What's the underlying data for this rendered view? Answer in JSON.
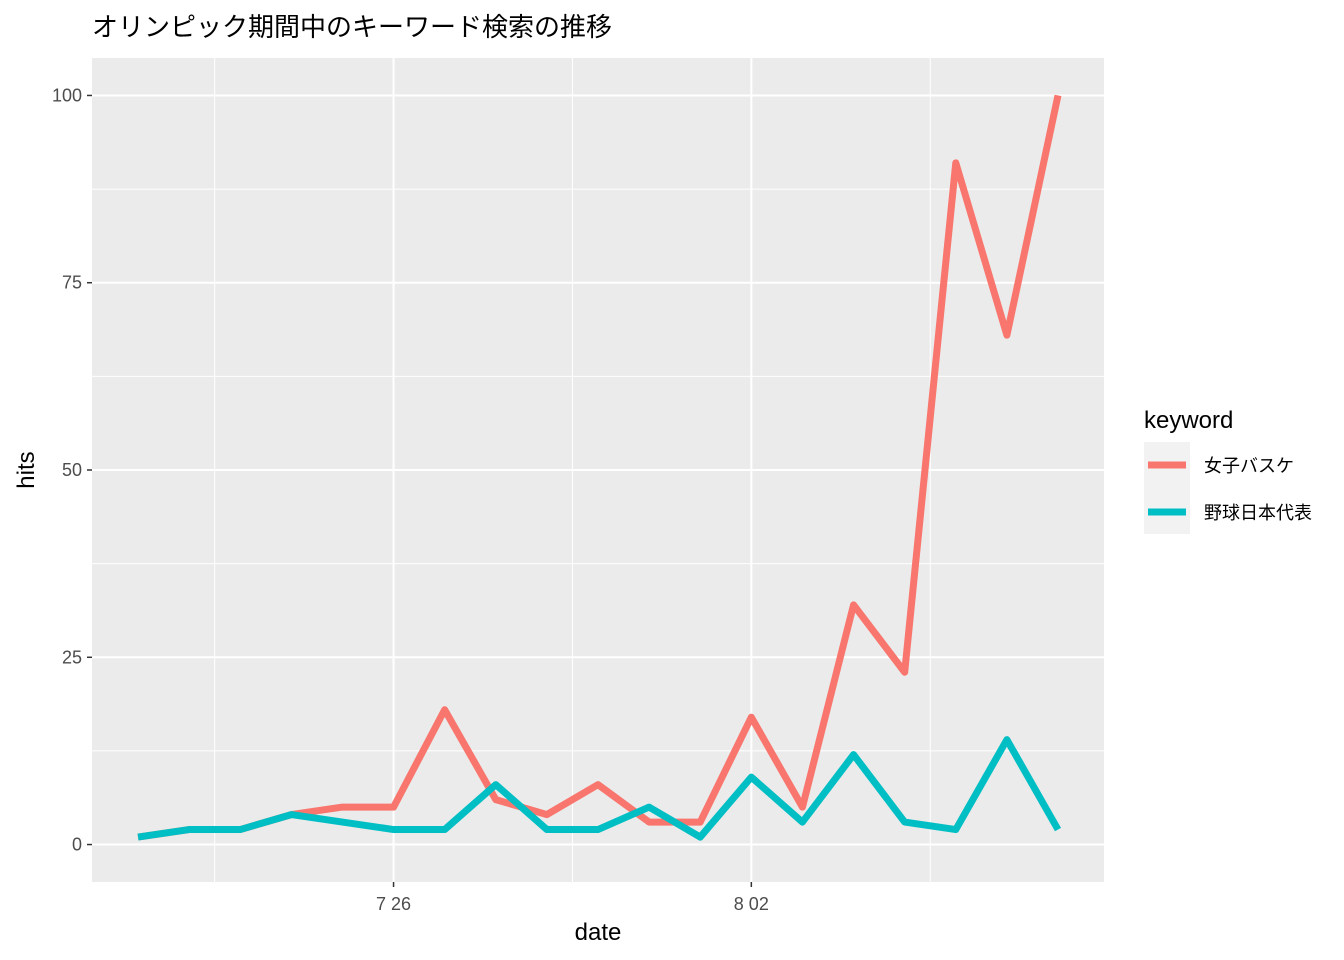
{
  "chart_data": {
    "type": "line",
    "title": "オリンピック期間中のキーワード検索の推移",
    "xlabel": "date",
    "ylabel": "hits",
    "x": [
      "7/21",
      "7/22",
      "7/23",
      "7/24",
      "7/25",
      "7/26",
      "7/27",
      "7/28",
      "7/29",
      "7/30",
      "7/31",
      "8/01",
      "8/02",
      "8/03",
      "8/04",
      "8/05",
      "8/06",
      "8/07",
      "8/08"
    ],
    "x_ticks": [
      {
        "at": "7/26",
        "label": "7 26"
      },
      {
        "at": "8/02",
        "label": "8 02"
      }
    ],
    "ylim": [
      0,
      100
    ],
    "y_ticks": [
      0,
      25,
      50,
      75,
      100
    ],
    "legend": {
      "title": "keyword",
      "position": "right"
    },
    "series": [
      {
        "name": "女子バスケ",
        "color": "#F8766D",
        "values": [
          1,
          2,
          2,
          4,
          5,
          5,
          18,
          6,
          4,
          8,
          3,
          3,
          17,
          5,
          32,
          23,
          91,
          68,
          100
        ]
      },
      {
        "name": "野球日本代表",
        "color": "#00BFC4",
        "values": [
          1,
          2,
          2,
          4,
          3,
          2,
          2,
          8,
          2,
          2,
          5,
          1,
          9,
          3,
          12,
          3,
          2,
          14,
          2
        ]
      }
    ],
    "panel_background": "#EBEBEB",
    "grid": true
  }
}
